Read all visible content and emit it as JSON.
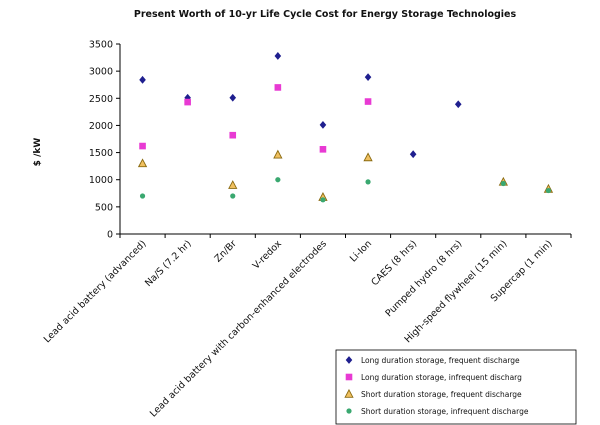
{
  "chart_data": {
    "type": "scatter",
    "title": "Present Worth of 10-yr Life Cycle Cost for Energy Storage Technologies",
    "ylabel": "$ /kW",
    "xlabel": "",
    "ylim": [
      0,
      3500
    ],
    "yticks": [
      "0",
      "500",
      "1000",
      "1500",
      "2000",
      "2500",
      "3000",
      "3500"
    ],
    "categories": [
      "Lead acid battery (advanced)",
      "Na/S (7.2 hr)",
      "Zn/Br",
      "V-redox",
      "Lead acid battery with carbon-enhanced electrodes",
      "Li-Ion",
      "CAES (8 hrs)",
      "Pumped hydro (8 hrs)",
      "High-speed flywheel (15 min)",
      "Supercap (1 min)"
    ],
    "series": [
      {
        "name": "Long duration storage, frequent discharge",
        "marker": "diamond",
        "color": "#1f1f8f",
        "values": [
          2840,
          2510,
          2510,
          3280,
          2010,
          2890,
          1470,
          2390,
          null,
          null
        ]
      },
      {
        "name": "Long duration storage, infrequent discharg",
        "marker": "square",
        "color": "#e83ad3",
        "values": [
          1620,
          2430,
          1820,
          2700,
          1560,
          2440,
          null,
          null,
          null,
          null
        ]
      },
      {
        "name": "Short duration storage, frequent discharge",
        "marker": "triangle",
        "color": "#f0c060",
        "stroke": "#8a6a10",
        "values": [
          1300,
          null,
          900,
          1460,
          680,
          1410,
          null,
          null,
          960,
          830
        ]
      },
      {
        "name": "Short duration storage, infrequent discharge",
        "marker": "circle",
        "color": "#3aa870",
        "values": [
          700,
          null,
          700,
          1000,
          630,
          960,
          null,
          null,
          930,
          800
        ]
      }
    ],
    "grid": false,
    "legend_position": "bottom-right"
  }
}
